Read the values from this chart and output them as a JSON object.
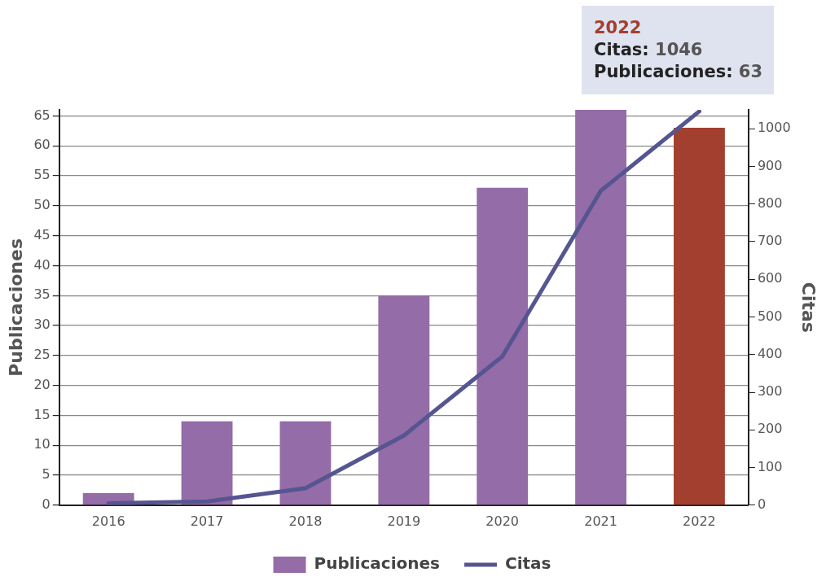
{
  "chart_data": {
    "type": "bar",
    "ylabel": "Publicaciones",
    "y2label": "Citas",
    "annotations": [
      "2022",
      "Citas: 1046",
      "Publicaciones: 63"
    ],
    "categories": [
      "2016",
      "2017",
      "2018",
      "2019",
      "2020",
      "2021",
      "2022"
    ],
    "series": [
      {
        "name": "Publicaciones",
        "colors": [
          "#946ca8",
          "#946ca8",
          "#946ca8",
          "#946ca8",
          "#946ca8",
          "#946ca8",
          "#a33f2e"
        ],
        "values": [
          2,
          14,
          14,
          35,
          53,
          66,
          63
        ]
      },
      {
        "name": "Citas",
        "type": "line",
        "axis": "y2",
        "color": "#555591",
        "values": [
          5,
          10,
          45,
          185,
          395,
          835,
          1046
        ]
      }
    ],
    "ylim": [
      0,
      66
    ],
    "yticks": [
      0,
      5,
      10,
      15,
      20,
      25,
      30,
      35,
      40,
      45,
      50,
      55,
      60,
      65
    ],
    "y2lim": [
      0,
      1050
    ],
    "y2ticks": [
      0,
      100,
      200,
      300,
      400,
      500,
      600,
      700,
      800,
      900,
      1000
    ],
    "grid": "y",
    "legend": "bottom",
    "marker": "none",
    "line_style": "solid"
  }
}
